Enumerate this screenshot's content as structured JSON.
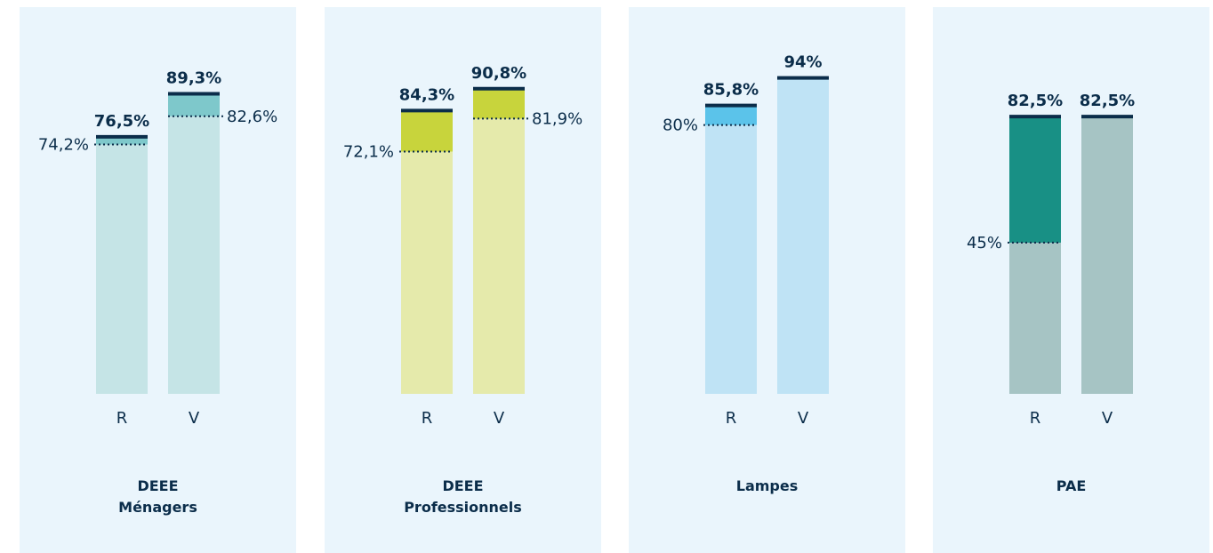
{
  "chart_data": [
    {
      "type": "bar",
      "title": "DEEE Ménagers",
      "categories": [
        "R",
        "V"
      ],
      "values": [
        76.5,
        89.3
      ],
      "value_labels": [
        "76,5%",
        "89,3%"
      ],
      "targets": [
        74.2,
        82.6
      ],
      "target_labels": [
        "74,2%",
        "82,6%"
      ],
      "color": "#c5e4e6",
      "highlight_color": "#7ec8cb",
      "ylim": [
        0,
        100
      ]
    },
    {
      "type": "bar",
      "title": "DEEE Professionnels",
      "categories": [
        "R",
        "V"
      ],
      "values": [
        84.3,
        90.8
      ],
      "value_labels": [
        "84,3%",
        "90,8%"
      ],
      "targets": [
        72.1,
        81.9
      ],
      "target_labels": [
        "72,1%",
        "81,9%"
      ],
      "color": "#e5eaab",
      "highlight_color": "#c8d43c",
      "ylim": [
        0,
        100
      ]
    },
    {
      "type": "bar",
      "title": "Lampes",
      "categories": [
        "R",
        "V"
      ],
      "values": [
        85.8,
        94
      ],
      "value_labels": [
        "85,8%",
        "94%"
      ],
      "targets": [
        80,
        null
      ],
      "target_labels": [
        "80%",
        null
      ],
      "color": "#bfe3f5",
      "highlight_color": "#5bc3ea",
      "ylim": [
        0,
        100
      ]
    },
    {
      "type": "bar",
      "title": "PAE",
      "categories": [
        "R",
        "V"
      ],
      "values": [
        82.5,
        82.5
      ],
      "value_labels": [
        "82,5%",
        "82,5%"
      ],
      "targets": [
        45,
        null
      ],
      "target_labels": [
        "45%",
        null
      ],
      "color": "#a6c4c4",
      "highlight_color": "#189085",
      "ylim": [
        0,
        100
      ]
    }
  ]
}
